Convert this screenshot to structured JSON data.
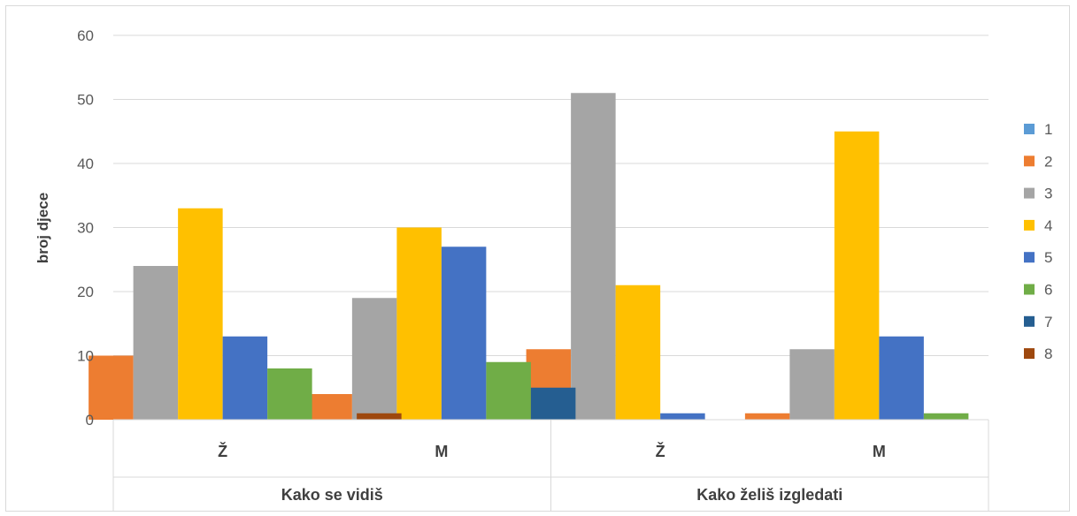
{
  "chart_data": {
    "type": "bar",
    "ylabel": "broj djece",
    "ylim": [
      0,
      60
    ],
    "yticks": [
      0,
      10,
      20,
      30,
      40,
      50,
      60
    ],
    "grid": true,
    "legend_position": "right",
    "groups": [
      {
        "label": "Kako se vidiš",
        "categories": [
          "Ž",
          "M"
        ]
      },
      {
        "label": "Kako želiš izgledati",
        "categories": [
          "Ž",
          "M"
        ]
      }
    ],
    "categories": [
      "Ž",
      "M",
      "Ž",
      "M"
    ],
    "series": [
      {
        "name": "1",
        "color": "#5B9BD5",
        "values": [
          0,
          0,
          0,
          0
        ]
      },
      {
        "name": "2",
        "color": "#ED7D31",
        "values": [
          10,
          4,
          11,
          1
        ]
      },
      {
        "name": "3",
        "color": "#A5A5A5",
        "values": [
          24,
          19,
          51,
          11
        ]
      },
      {
        "name": "4",
        "color": "#FFC000",
        "values": [
          33,
          30,
          21,
          45
        ]
      },
      {
        "name": "5",
        "color": "#4472C4",
        "values": [
          13,
          27,
          1,
          13
        ]
      },
      {
        "name": "6",
        "color": "#70AD47",
        "values": [
          8,
          9,
          0,
          1
        ]
      },
      {
        "name": "7",
        "color": "#255E91",
        "values": [
          0,
          5,
          0,
          0
        ]
      },
      {
        "name": "8",
        "color": "#9E480E",
        "values": [
          1,
          0,
          0,
          0
        ]
      }
    ]
  }
}
